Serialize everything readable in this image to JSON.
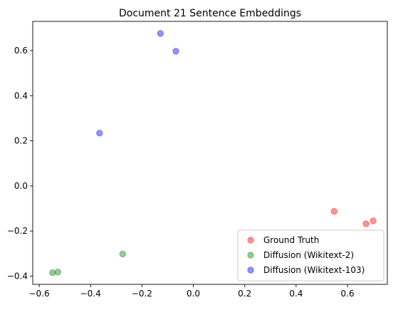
{
  "chart_data": {
    "type": "scatter",
    "title": "Document 21 Sentence Embeddings",
    "xlabel": "",
    "ylabel": "",
    "xlim": [
      -0.625,
      0.755
    ],
    "ylim": [
      -0.4365,
      0.7295
    ],
    "xticks": [
      -0.6,
      -0.4,
      -0.2,
      0.0,
      0.2,
      0.4,
      0.6
    ],
    "xtick_labels": [
      "−0.6",
      "−0.4",
      "−0.2",
      "0.0",
      "0.2",
      "0.4",
      "0.6"
    ],
    "yticks": [
      -0.4,
      -0.2,
      0.0,
      0.2,
      0.4,
      0.6
    ],
    "ytick_labels": [
      "−0.4",
      "−0.2",
      "0.0",
      "0.2",
      "0.4",
      "0.6"
    ],
    "grid": false,
    "legend_position": "lower-right",
    "series": [
      {
        "name": "Ground Truth",
        "color": "#ff0000",
        "points": [
          [
            0.548,
            -0.113
          ],
          [
            0.672,
            -0.168
          ],
          [
            0.7,
            -0.155
          ]
        ]
      },
      {
        "name": "Diffusion (Wikitext-2)",
        "color": "#008000",
        "points": [
          [
            -0.275,
            -0.302
          ],
          [
            -0.548,
            -0.385
          ],
          [
            -0.527,
            -0.382
          ]
        ]
      },
      {
        "name": "Diffusion (Wikitext-103)",
        "color": "#0000ff",
        "points": [
          [
            -0.128,
            0.676
          ],
          [
            -0.068,
            0.597
          ],
          [
            -0.365,
            0.234
          ]
        ]
      }
    ]
  }
}
